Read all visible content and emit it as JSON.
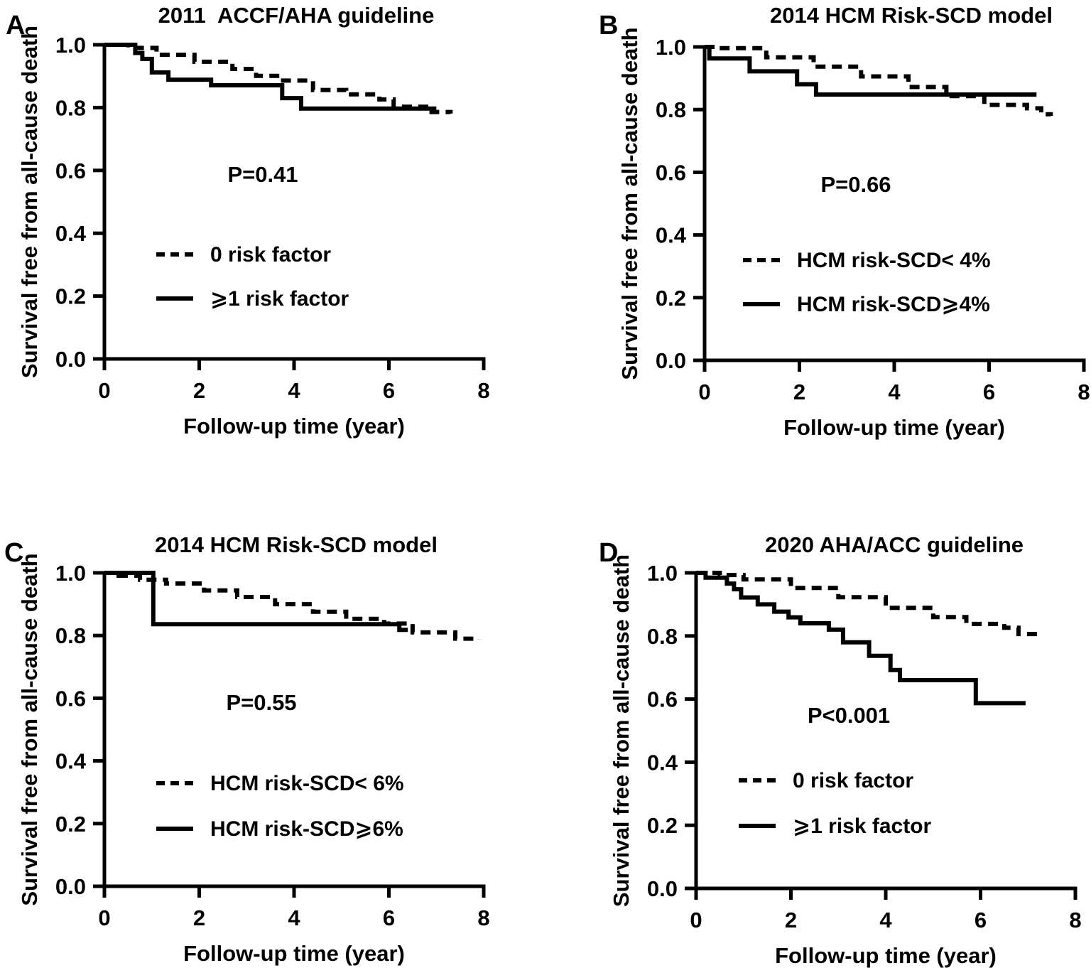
{
  "figure": {
    "background_color": "#ffffff",
    "line_color": "#000000"
  },
  "chart_data": [
    {
      "panel": "A",
      "type": "line",
      "subtype": "kaplan-meier-step",
      "title": "2011  ACCF/AHA guideline",
      "p_value": "P=0.41",
      "xlabel": "Follow-up time (year)",
      "ylabel": "Survival free from all-cause death",
      "xlim": [
        0,
        8
      ],
      "ylim": [
        0.0,
        1.0
      ],
      "x_ticks": [
        "0",
        "2",
        "4",
        "6",
        "8"
      ],
      "y_ticks": [
        "1.0",
        "0.8",
        "0.6",
        "0.4",
        "0.2",
        "0.0"
      ],
      "grid": "off",
      "legend_position": "inside-middle-left",
      "series": [
        {
          "name": "0 risk factor",
          "line_style": "dashed",
          "points": [
            [
              0,
              1.0
            ],
            [
              0.5,
              0.99
            ],
            [
              1.1,
              0.968
            ],
            [
              1.9,
              0.946
            ],
            [
              2.7,
              0.923
            ],
            [
              3.2,
              0.901
            ],
            [
              3.7,
              0.886
            ],
            [
              4.4,
              0.856
            ],
            [
              5.1,
              0.842
            ],
            [
              5.8,
              0.826
            ],
            [
              6.1,
              0.803
            ],
            [
              6.9,
              0.786
            ],
            [
              7.3,
              0.781
            ]
          ]
        },
        {
          "name": "⩾1 risk factor",
          "line_style": "solid",
          "points": [
            [
              0,
              1.0
            ],
            [
              0.65,
              0.974
            ],
            [
              0.8,
              0.955
            ],
            [
              1.0,
              0.912
            ],
            [
              1.35,
              0.889
            ],
            [
              2.25,
              0.871
            ],
            [
              3.75,
              0.83
            ],
            [
              4.15,
              0.797
            ],
            [
              7.0,
              0.797
            ]
          ]
        }
      ]
    },
    {
      "panel": "B",
      "type": "line",
      "subtype": "kaplan-meier-step",
      "title": "2014 HCM Risk-SCD model",
      "p_value": "P=0.66",
      "xlabel": "Follow-up time (year)",
      "ylabel": "Survival free from all-cause death",
      "xlim": [
        0,
        8
      ],
      "ylim": [
        0.0,
        1.0
      ],
      "x_ticks": [
        "0",
        "2",
        "4",
        "6",
        "8"
      ],
      "y_ticks": [
        "1.0",
        "0.8",
        "0.6",
        "0.4",
        "0.2",
        "0.0"
      ],
      "grid": "off",
      "legend_position": "inside-middle-left",
      "series": [
        {
          "name": "HCM risk-SCD< 4%",
          "line_style": "dashed",
          "points": [
            [
              0,
              1.0
            ],
            [
              0.3,
              0.996
            ],
            [
              1.3,
              0.967
            ],
            [
              2.3,
              0.937
            ],
            [
              3.3,
              0.906
            ],
            [
              4.3,
              0.872
            ],
            [
              5.1,
              0.843
            ],
            [
              5.9,
              0.815
            ],
            [
              6.8,
              0.804
            ],
            [
              7.1,
              0.785
            ],
            [
              7.3,
              0.78
            ]
          ]
        },
        {
          "name": "HCM risk-SCD⩾4%",
          "line_style": "solid",
          "points": [
            [
              0,
              1.0
            ],
            [
              0.1,
              0.963
            ],
            [
              0.95,
              0.922
            ],
            [
              1.95,
              0.881
            ],
            [
              2.35,
              0.848
            ],
            [
              7.0,
              0.848
            ]
          ]
        }
      ]
    },
    {
      "panel": "C",
      "type": "line",
      "subtype": "kaplan-meier-step",
      "title": "2014 HCM Risk-SCD model",
      "p_value": "P=0.55",
      "xlabel": "Follow-up time (year)",
      "ylabel": "Survival free from all-cause death",
      "xlim": [
        0,
        8
      ],
      "ylim": [
        0.0,
        1.0
      ],
      "x_ticks": [
        "0",
        "2",
        "4",
        "6",
        "8"
      ],
      "y_ticks": [
        "1.0",
        "0.8",
        "0.6",
        "0.4",
        "0.2",
        "0.0"
      ],
      "grid": "off",
      "legend_position": "inside-middle-left",
      "series": [
        {
          "name": "HCM risk-SCD< 6%",
          "line_style": "dashed",
          "points": [
            [
              0,
              1.0
            ],
            [
              0.3,
              0.991
            ],
            [
              0.75,
              0.978
            ],
            [
              1.3,
              0.966
            ],
            [
              2.1,
              0.944
            ],
            [
              2.8,
              0.923
            ],
            [
              3.6,
              0.9
            ],
            [
              4.4,
              0.876
            ],
            [
              5.1,
              0.853
            ],
            [
              5.9,
              0.838
            ],
            [
              6.5,
              0.81
            ],
            [
              7.4,
              0.79
            ],
            [
              7.9,
              0.787
            ]
          ]
        },
        {
          "name": "HCM risk-SCD⩾6%",
          "line_style": "solid",
          "points": [
            [
              0,
              1.0
            ],
            [
              1.03,
              0.836
            ],
            [
              6.22,
              0.818
            ],
            [
              6.4,
              0.818
            ]
          ]
        }
      ]
    },
    {
      "panel": "D",
      "type": "line",
      "subtype": "kaplan-meier-step",
      "title": "2020 AHA/ACC guideline",
      "p_value": "P<0.001",
      "xlabel": "Follow-up time (year)",
      "ylabel": "Survival free from all-cause death",
      "xlim": [
        0,
        8
      ],
      "ylim": [
        0.0,
        1.0
      ],
      "x_ticks": [
        "0",
        "2",
        "4",
        "6",
        "8"
      ],
      "y_ticks": [
        "1.0",
        "0.8",
        "0.6",
        "0.4",
        "0.2",
        "0.0"
      ],
      "grid": "off",
      "legend_position": "inside-middle-left",
      "series": [
        {
          "name": "0 risk factor",
          "line_style": "dashed",
          "points": [
            [
              0,
              1.0
            ],
            [
              0.5,
              0.993
            ],
            [
              1.0,
              0.979
            ],
            [
              2.0,
              0.952
            ],
            [
              3.0,
              0.923
            ],
            [
              4.0,
              0.889
            ],
            [
              5.0,
              0.86
            ],
            [
              5.7,
              0.838
            ],
            [
              6.5,
              0.826
            ],
            [
              6.8,
              0.806
            ],
            [
              7.2,
              0.8
            ]
          ]
        },
        {
          "name": "⩾1 risk factor",
          "line_style": "solid",
          "points": [
            [
              0,
              1.0
            ],
            [
              0.2,
              0.985
            ],
            [
              0.65,
              0.966
            ],
            [
              0.8,
              0.948
            ],
            [
              0.95,
              0.922
            ],
            [
              1.3,
              0.9
            ],
            [
              1.65,
              0.877
            ],
            [
              1.95,
              0.859
            ],
            [
              2.2,
              0.84
            ],
            [
              2.8,
              0.82
            ],
            [
              3.1,
              0.78
            ],
            [
              3.65,
              0.737
            ],
            [
              4.1,
              0.692
            ],
            [
              4.3,
              0.66
            ],
            [
              5.9,
              0.587
            ],
            [
              6.95,
              0.587
            ]
          ]
        }
      ]
    }
  ]
}
